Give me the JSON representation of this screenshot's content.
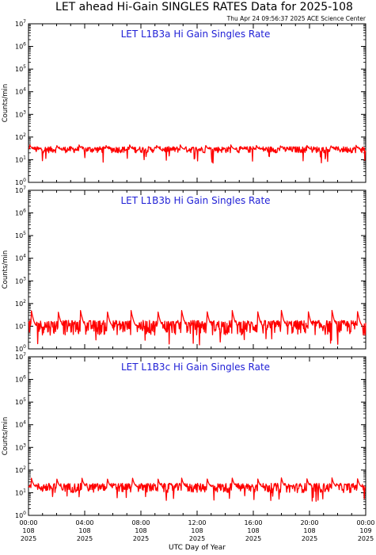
{
  "header": {
    "title": "LET ahead Hi-Gain SINGLES RATES Data for 2025-108",
    "timestamp": "Thu Apr 24 09:56:37 2025 ACE Science Center"
  },
  "colors": {
    "series": "#ff0000",
    "panel_title": "#1f1fd6",
    "axes": "#000000"
  },
  "chart_data": [
    {
      "type": "line",
      "title": "LET L1B3a Hi Gain Singles Rate",
      "ylabel": "Counts/min",
      "yscale": "log",
      "ylim": [
        1,
        10000000
      ],
      "xlim": [
        0,
        24
      ],
      "y_ticks": [
        {
          "base": "10",
          "exp": "0"
        },
        {
          "base": "10",
          "exp": "1"
        },
        {
          "base": "10",
          "exp": "2"
        },
        {
          "base": "10",
          "exp": "3"
        },
        {
          "base": "10",
          "exp": "4"
        },
        {
          "base": "10",
          "exp": "5"
        },
        {
          "base": "10",
          "exp": "6"
        },
        {
          "base": "10",
          "exp": "7"
        }
      ],
      "baseline": 28,
      "noise_low": 20,
      "noise_high": 38,
      "spike_hours": [
        0.1,
        2.0,
        3.6,
        5.5,
        7.2,
        9.1,
        10.8,
        12.6,
        14.4,
        16.2,
        17.9,
        19.8,
        21.5,
        23.3
      ],
      "spike_peak": 45
    },
    {
      "type": "line",
      "title": "LET L1B3b Hi Gain Singles Rate",
      "ylabel": "Counts/min",
      "yscale": "log",
      "ylim": [
        1,
        10000000
      ],
      "xlim": [
        0,
        24
      ],
      "y_ticks": [
        {
          "base": "10",
          "exp": "0"
        },
        {
          "base": "10",
          "exp": "1"
        },
        {
          "base": "10",
          "exp": "2"
        },
        {
          "base": "10",
          "exp": "3"
        },
        {
          "base": "10",
          "exp": "4"
        },
        {
          "base": "10",
          "exp": "5"
        },
        {
          "base": "10",
          "exp": "6"
        },
        {
          "base": "10",
          "exp": "7"
        }
      ],
      "baseline": 9,
      "noise_low": 4,
      "noise_high": 18,
      "spike_hours": [
        0.2,
        2.1,
        3.7,
        5.6,
        7.3,
        9.2,
        10.9,
        12.7,
        14.5,
        16.3,
        18.0,
        19.9,
        21.6,
        23.4
      ],
      "spike_peak": 50
    },
    {
      "type": "line",
      "title": "LET L1B3c Hi Gain Singles Rate",
      "ylabel": "Counts/min",
      "yscale": "log",
      "ylim": [
        1,
        10000000
      ],
      "xlim": [
        0,
        24
      ],
      "y_ticks": [
        {
          "base": "10",
          "exp": "0"
        },
        {
          "base": "10",
          "exp": "1"
        },
        {
          "base": "10",
          "exp": "2"
        },
        {
          "base": "10",
          "exp": "3"
        },
        {
          "base": "10",
          "exp": "4"
        },
        {
          "base": "10",
          "exp": "5"
        },
        {
          "base": "10",
          "exp": "6"
        },
        {
          "base": "10",
          "exp": "7"
        }
      ],
      "baseline": 17,
      "noise_low": 10,
      "noise_high": 26,
      "spike_hours": [
        0.2,
        2.0,
        3.8,
        5.6,
        7.4,
        9.2,
        10.9,
        12.7,
        14.5,
        16.3,
        18.0,
        19.8,
        21.6,
        23.4
      ],
      "spike_peak": 45
    }
  ],
  "x_axis": {
    "label": "UTC Day of Year",
    "ticks": [
      {
        "hour": 0,
        "time": "00:00",
        "doy": "108",
        "year": "2025"
      },
      {
        "hour": 4,
        "time": "04:00",
        "doy": "108",
        "year": "2025"
      },
      {
        "hour": 8,
        "time": "08:00",
        "doy": "108",
        "year": "2025"
      },
      {
        "hour": 12,
        "time": "12:00",
        "doy": "108",
        "year": "2025"
      },
      {
        "hour": 16,
        "time": "16:00",
        "doy": "108",
        "year": "2025"
      },
      {
        "hour": 20,
        "time": "20:00",
        "doy": "108",
        "year": "2025"
      },
      {
        "hour": 24,
        "time": "00:00",
        "doy": "109",
        "year": "2025"
      }
    ]
  }
}
